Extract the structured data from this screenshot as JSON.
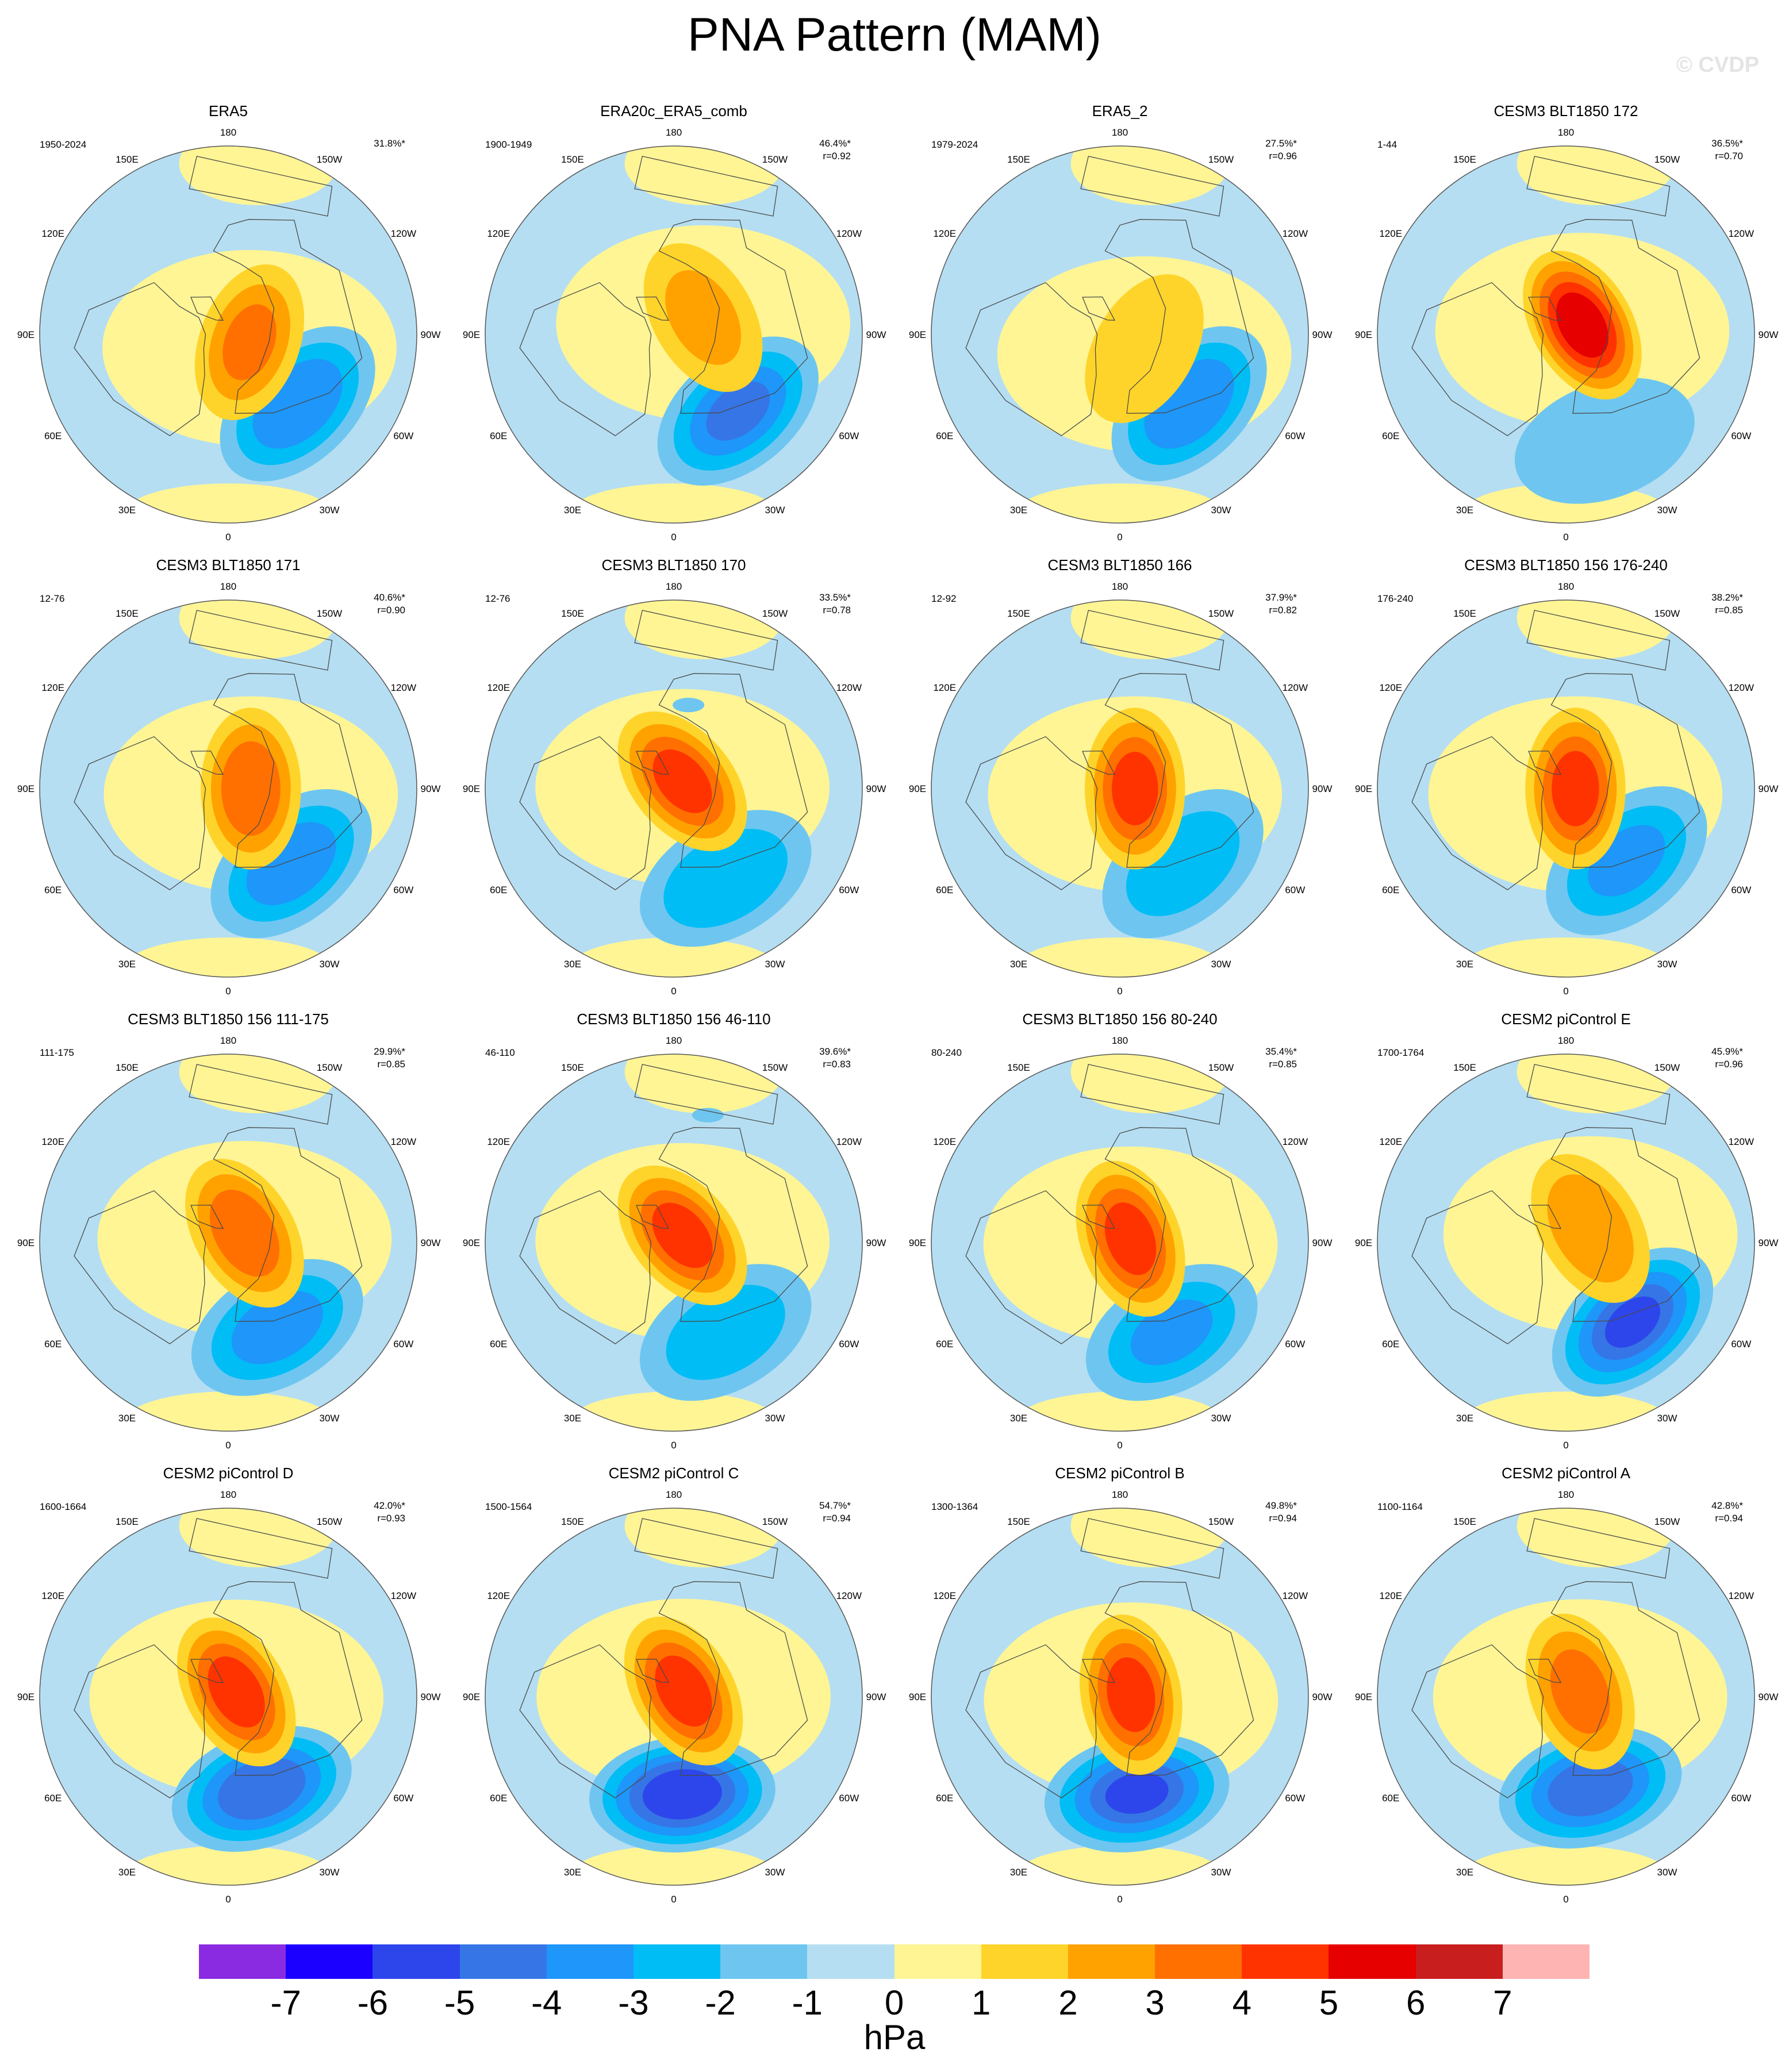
{
  "title": "PNA Pattern (MAM)",
  "watermark": "© CVDP",
  "colors": {
    "ocean_fill": "#b5def2",
    "positive_fill": "#fff595",
    "land_line": "#4a4a4a",
    "circle_line": "#555555"
  },
  "longitude_labels": [
    "180",
    "150E",
    "120E",
    "90E",
    "60E",
    "30E",
    "0",
    "30W",
    "60W",
    "90W",
    "120W",
    "150W"
  ],
  "panels": [
    {
      "title": "ERA5",
      "years": "1950-2024",
      "pct": "31.8%*",
      "r": "",
      "low": -3.8,
      "high": 3.0,
      "low_lon": 135,
      "low_r": 0.52,
      "high_lon": 110,
      "high_r": 0.12,
      "extra": []
    },
    {
      "title": "ERA20c_ERA5_comb",
      "years": "1900-1949",
      "pct": "46.4%*",
      "r": "r=0.92",
      "low": -4.0,
      "high": 2.0,
      "low_lon": 140,
      "low_r": 0.53,
      "high_lon": 60,
      "high_r": 0.18,
      "extra": []
    },
    {
      "title": "ERA5_2",
      "years": "1979-2024",
      "pct": "27.5%*",
      "r": "r=0.96",
      "low": -3.8,
      "high": 1.7,
      "low_lon": 135,
      "low_r": 0.52,
      "high_lon": 120,
      "high_r": 0.15,
      "extra": []
    },
    {
      "title": "CESM3 BLT1850 172",
      "years": "1-44",
      "pct": "36.5%*",
      "r": "r=0.70",
      "low": -1.8,
      "high": 5.8,
      "low_lon": 160,
      "low_r": 0.6,
      "high_lon": 60,
      "high_r": 0.1,
      "extra": []
    },
    {
      "title": "CESM3 BLT1850 171",
      "years": "12-76",
      "pct": "40.6%*",
      "r": "r=0.90",
      "low": -3.6,
      "high": 3.8,
      "low_lon": 140,
      "low_r": 0.52,
      "high_lon": 90,
      "high_r": 0.12,
      "extra": []
    },
    {
      "title": "CESM3 BLT1850 170",
      "years": "12-76",
      "pct": "33.5%*",
      "r": "r=0.78",
      "low": -2.8,
      "high": 4.4,
      "low_lon": 150,
      "low_r": 0.55,
      "high_lon": 50,
      "high_r": 0.06,
      "extra": [
        {
          "v": -1.5,
          "lon": 10,
          "r": 0.45,
          "s": 0.07
        }
      ]
    },
    {
      "title": "CESM3 BLT1850 166",
      "years": "12-92",
      "pct": "37.9%*",
      "r": "r=0.82",
      "low": -2.6,
      "high": 4.4,
      "low_lon": 140,
      "low_r": 0.52,
      "high_lon": 90,
      "high_r": 0.08,
      "extra": []
    },
    {
      "title": "CESM3 BLT1850 156 176-240",
      "years": "176-240",
      "pct": "38.2%*",
      "r": "r=0.85",
      "low": -3.0,
      "high": 4.5,
      "low_lon": 140,
      "low_r": 0.5,
      "high_lon": 90,
      "high_r": 0.05,
      "extra": []
    },
    {
      "title": "CESM3 BLT1850 156 111-175",
      "years": "111-175",
      "pct": "29.9%*",
      "r": "r=0.85",
      "low": -3.4,
      "high": 3.8,
      "low_lon": 150,
      "low_r": 0.52,
      "high_lon": 60,
      "high_r": 0.1,
      "extra": []
    },
    {
      "title": "CESM3 BLT1850 156 46-110",
      "years": "46-110",
      "pct": "39.6%*",
      "r": "r=0.83",
      "low": -2.5,
      "high": 4.5,
      "low_lon": 150,
      "low_r": 0.55,
      "high_lon": 50,
      "high_r": 0.06,
      "extra": [
        {
          "v": -1.5,
          "lon": 15,
          "r": 0.7,
          "s": 0.07
        }
      ]
    },
    {
      "title": "CESM3 BLT1850 156 80-240",
      "years": "80-240",
      "pct": "35.4%*",
      "r": "r=0.85",
      "low": -3.0,
      "high": 4.5,
      "low_lon": 150,
      "low_r": 0.55,
      "high_lon": 70,
      "high_r": 0.06,
      "extra": []
    },
    {
      "title": "CESM2 piControl E",
      "years": "1700-1764",
      "pct": "45.9%*",
      "r": "r=0.96",
      "low": -5.0,
      "high": 2.8,
      "low_lon": 140,
      "low_r": 0.55,
      "high_lon": 60,
      "high_r": 0.15,
      "extra": []
    },
    {
      "title": "CESM2 piControl D",
      "years": "1600-1664",
      "pct": "42.0%*",
      "r": "r=0.93",
      "low": -4.8,
      "high": 4.6,
      "low_lon": 160,
      "low_r": 0.52,
      "high_lon": 60,
      "high_r": 0.05,
      "extra": []
    },
    {
      "title": "CESM2 piControl C",
      "years": "1500-1564",
      "pct": "54.7%*",
      "r": "r=0.94",
      "low": -5.8,
      "high": 4.6,
      "low_lon": 175,
      "low_r": 0.52,
      "high_lon": 60,
      "high_r": 0.06,
      "extra": []
    },
    {
      "title": "CESM2 piControl B",
      "years": "1300-1364",
      "pct": "49.8%*",
      "r": "r=0.94",
      "low": -5.0,
      "high": 4.5,
      "low_lon": 170,
      "low_r": 0.52,
      "high_lon": 80,
      "high_r": 0.06,
      "extra": []
    },
    {
      "title": "CESM2 piControl A",
      "years": "1100-1164",
      "pct": "42.8%*",
      "r": "r=0.94",
      "low": -4.6,
      "high": 3.4,
      "low_lon": 165,
      "low_r": 0.5,
      "high_lon": 70,
      "high_r": 0.08,
      "extra": []
    }
  ],
  "colorbar": {
    "colors": [
      "#8a2be2",
      "#1c00ff",
      "#2d46eb",
      "#3675e6",
      "#1e96fa",
      "#00bdf5",
      "#6ec6f0",
      "#b5def2",
      "#fff595",
      "#ffd42a",
      "#ffa200",
      "#ff7000",
      "#ff3300",
      "#e60000",
      "#c81e1e",
      "#ffb4b4"
    ],
    "ticks": [
      "-7",
      "-6",
      "-5",
      "-4",
      "-3",
      "-2",
      "-1",
      "0",
      "1",
      "2",
      "3",
      "4",
      "5",
      "6",
      "7"
    ],
    "units": "hPa"
  }
}
